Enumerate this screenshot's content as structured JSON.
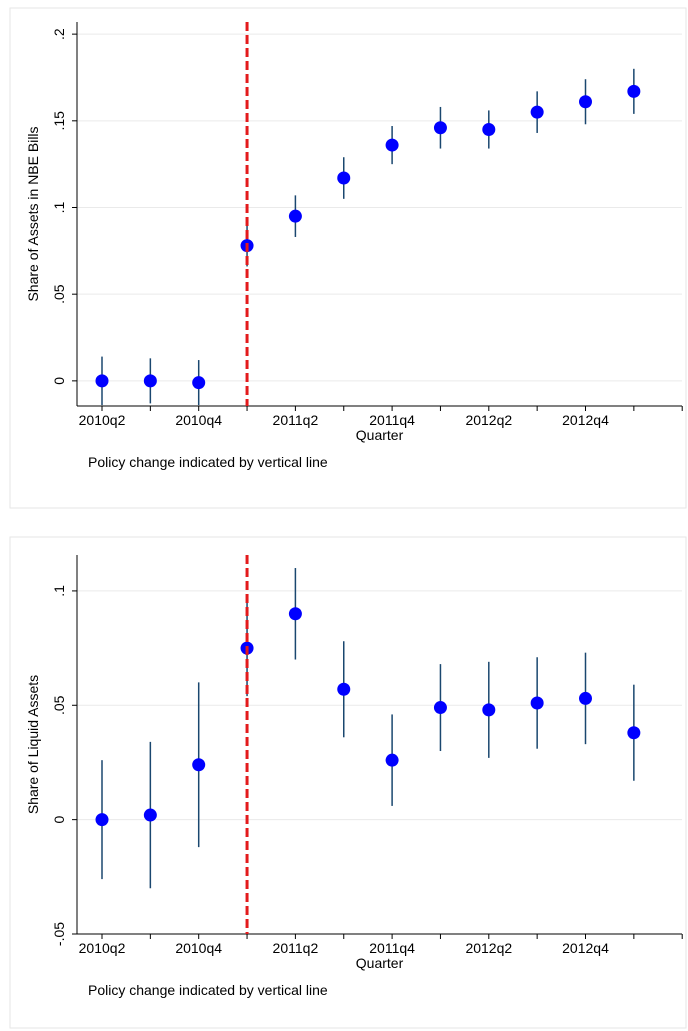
{
  "chart_data": [
    {
      "type": "scatter",
      "y_label": "Share of Assets in NBE Bills",
      "x_label": "Quarter",
      "note": "Policy change indicated by vertical line",
      "categories": [
        "2010q2",
        null,
        "2010q4",
        null,
        "2011q2",
        null,
        "2011q4",
        null,
        "2012q2",
        null,
        "2012q4",
        null,
        null
      ],
      "values": [
        0,
        0,
        -0.001,
        0.078,
        0.095,
        0.117,
        0.136,
        0.146,
        0.145,
        0.155,
        0.161,
        0.167,
        null
      ],
      "errors": [
        0.014,
        0.013,
        0.013,
        0.012,
        0.012,
        0.012,
        0.011,
        0.012,
        0.011,
        0.012,
        0.013,
        0.013,
        null
      ],
      "ylim": [
        -0.0145,
        0.207
      ],
      "yticks": [
        0,
        {
          "value": 0.05,
          "label": ".05"
        },
        {
          "value": 0.1,
          "label": ".1"
        },
        {
          "value": 0.15,
          "label": ".15"
        },
        {
          "value": 0.2,
          "label": ".2"
        }
      ],
      "vline_at": 3,
      "grid": true,
      "color": "#0000ff",
      "error_color": "#1a476f",
      "vline_color": "#e31a1c"
    },
    {
      "type": "scatter",
      "y_label": "Share of Liquid Assets",
      "x_label": "Quarter",
      "note": "Policy change indicated by vertical line",
      "categories": [
        "2010q2",
        null,
        "2010q4",
        null,
        "2011q2",
        null,
        "2011q4",
        null,
        "2012q2",
        null,
        "2012q4",
        null,
        null
      ],
      "values": [
        0,
        0.002,
        0.024,
        0.075,
        0.09,
        0.057,
        0.026,
        0.049,
        0.048,
        0.051,
        0.053,
        0.038,
        null
      ],
      "errors": [
        0.026,
        0.032,
        0.036,
        0.021,
        0.02,
        0.021,
        0.02,
        0.019,
        0.021,
        0.02,
        0.02,
        0.021,
        null
      ],
      "ylim": [
        -0.05,
        0.1157
      ],
      "yticks": [
        {
          "value": -0.05,
          "label": "-.05"
        },
        0,
        {
          "value": 0.05,
          "label": ".05"
        },
        {
          "value": 0.1,
          "label": ".1"
        }
      ],
      "vline_at": 3,
      "grid": true,
      "color": "#0000ff",
      "error_color": "#1a476f",
      "vline_color": "#e31a1c"
    }
  ]
}
